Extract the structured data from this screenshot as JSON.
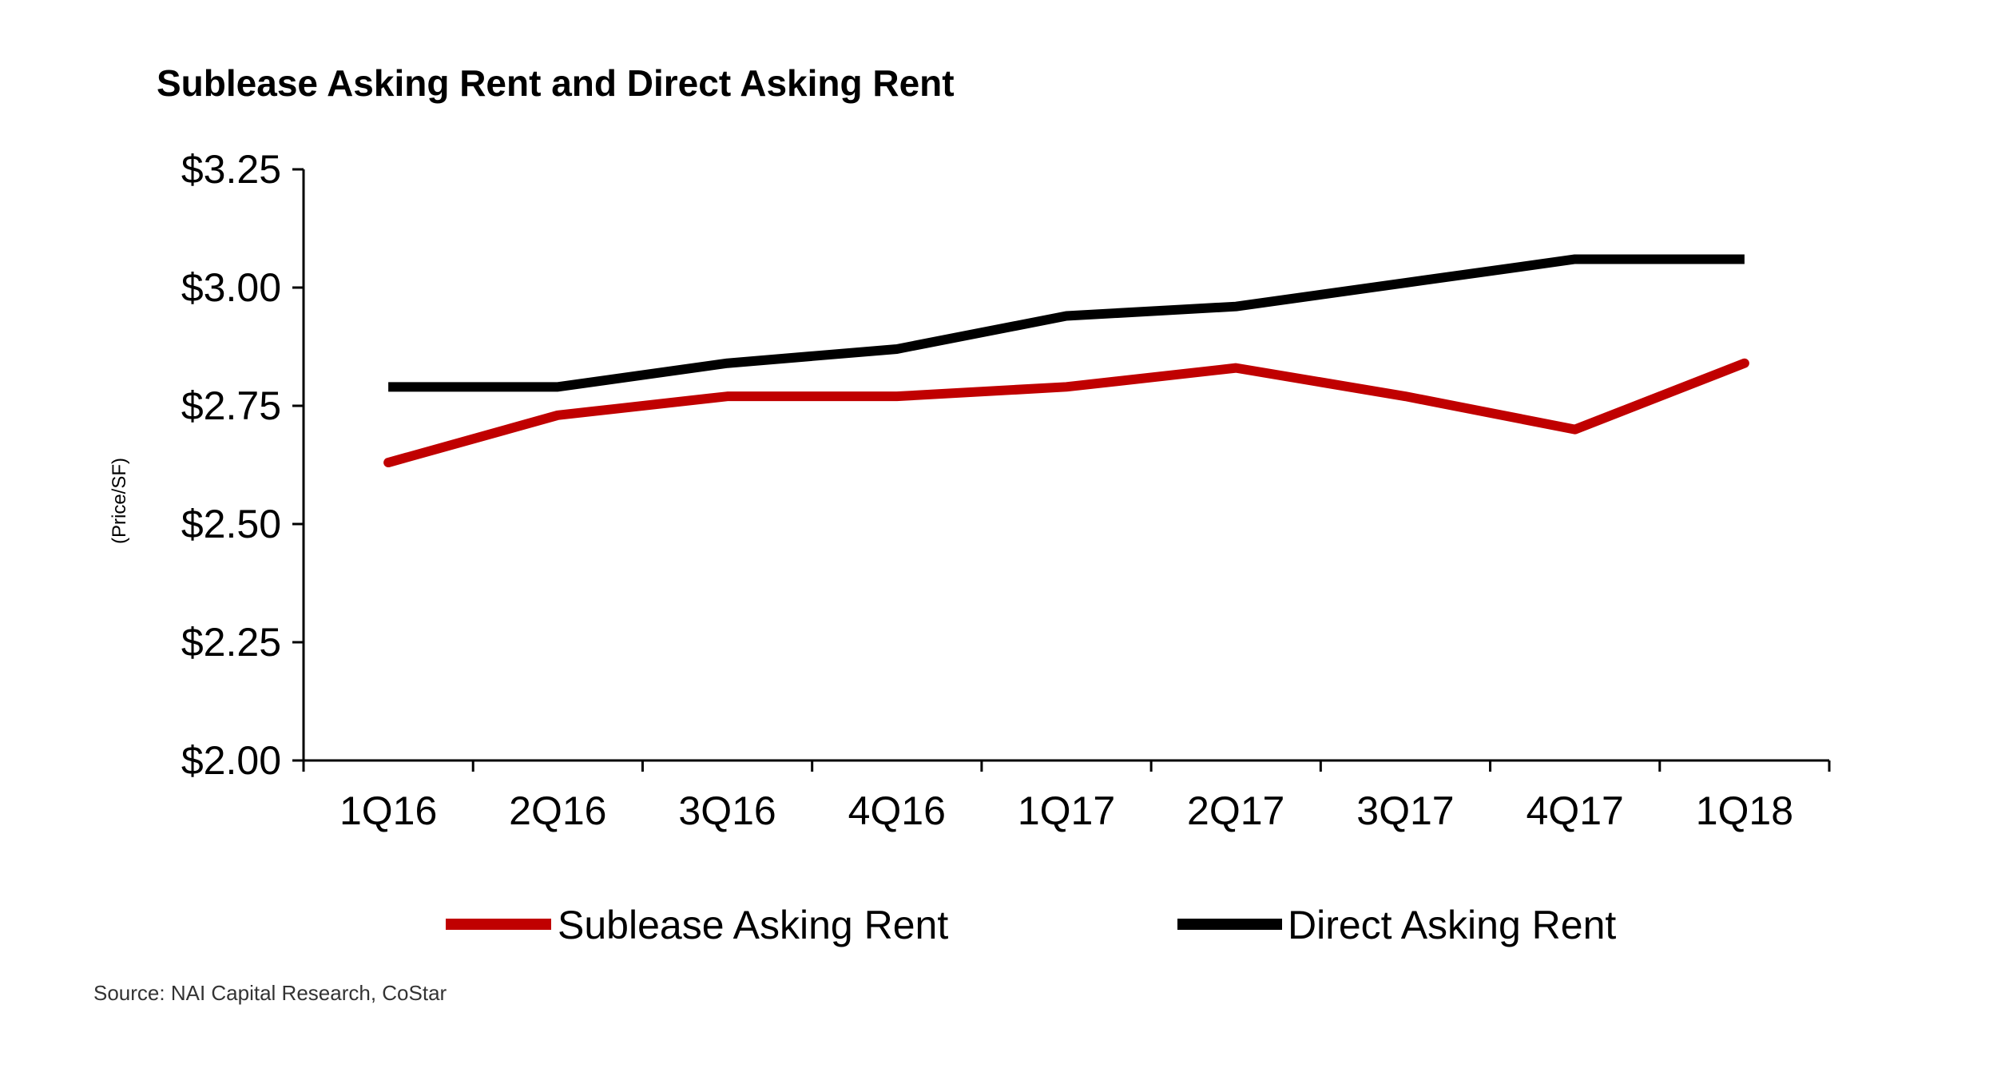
{
  "chart_data": {
    "type": "line",
    "title": "Sublease Asking Rent and Direct Asking Rent",
    "xlabel": "",
    "ylabel": "(Price/SF)",
    "categories": [
      "1Q16",
      "2Q16",
      "3Q16",
      "4Q16",
      "1Q17",
      "2Q17",
      "3Q17",
      "4Q17",
      "1Q18"
    ],
    "ylim": [
      2.0,
      3.25
    ],
    "yticks": [
      2.0,
      2.25,
      2.5,
      2.75,
      3.0,
      3.25
    ],
    "ytick_labels": [
      "$2.00",
      "$2.25",
      "$2.50",
      "$2.75",
      "$3.00",
      "$3.25"
    ],
    "grid": false,
    "legend_position": "bottom",
    "series": [
      {
        "name": "Sublease Asking Rent",
        "color": "#C00000",
        "values": [
          2.63,
          2.73,
          2.77,
          2.77,
          2.79,
          2.83,
          2.77,
          2.7,
          2.84
        ]
      },
      {
        "name": "Direct Asking Rent",
        "color": "#000000",
        "values": [
          2.79,
          2.79,
          2.84,
          2.87,
          2.94,
          2.96,
          3.01,
          3.06,
          3.06
        ]
      }
    ],
    "source": "Source: NAI Capital Research, CoStar"
  }
}
